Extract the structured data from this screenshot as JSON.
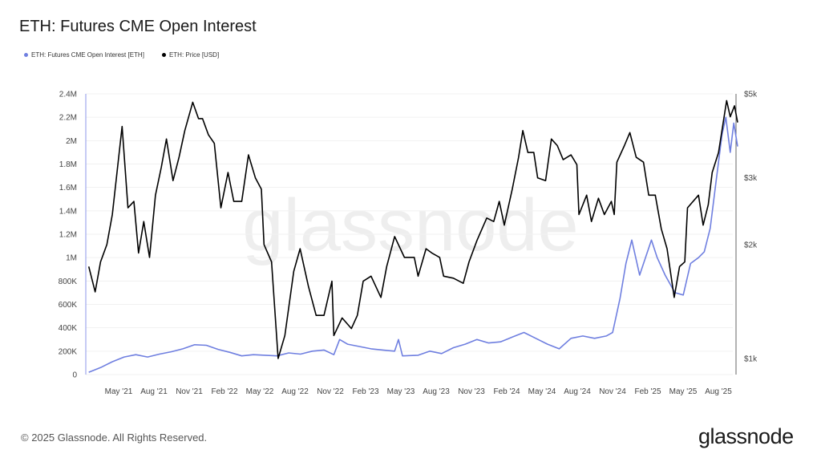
{
  "header": {
    "title": "ETH: Futures CME Open Interest"
  },
  "footer": {
    "copyright": "© 2025 Glassnode. All Rights Reserved.",
    "logo": "glassnode"
  },
  "watermark": "glassnode",
  "chart_data": {
    "type": "line",
    "title": "ETH: Futures CME Open Interest",
    "legend_position": "top-left",
    "grid": true,
    "x_ticks": [
      "May '21",
      "Aug '21",
      "Nov '21",
      "Feb '22",
      "May '22",
      "Aug '22",
      "Nov '22",
      "Feb '23",
      "May '23",
      "Aug '23",
      "Nov '23",
      "Feb '24",
      "May '24",
      "Aug '24",
      "Nov '24",
      "Feb '25",
      "May '25",
      "Aug '25"
    ],
    "y_left": {
      "ticks": [
        "0",
        "200K",
        "400K",
        "600K",
        "800K",
        "1M",
        "1.2M",
        "1.4M",
        "1.6M",
        "1.8M",
        "2M",
        "2.2M",
        "2.4M"
      ],
      "range": [
        0,
        2400000
      ],
      "scale": "linear"
    },
    "y_right": {
      "ticks": [
        "$1k",
        "$2k",
        "$3k",
        "$5k"
      ],
      "tick_values": [
        1000,
        2000,
        3000,
        5000
      ],
      "range": [
        1000,
        5000
      ],
      "scale": "log"
    },
    "series": [
      {
        "name": "ETH: Futures CME Open Interest [ETH]",
        "axis": "left",
        "color": "#6f7fe0",
        "points": [
          [
            "2021-02-15",
            20000
          ],
          [
            "2021-03-15",
            60000
          ],
          [
            "2021-04-15",
            110000
          ],
          [
            "2021-05-15",
            150000
          ],
          [
            "2021-06-15",
            170000
          ],
          [
            "2021-07-15",
            150000
          ],
          [
            "2021-08-15",
            175000
          ],
          [
            "2021-09-15",
            195000
          ],
          [
            "2021-10-15",
            220000
          ],
          [
            "2021-11-15",
            255000
          ],
          [
            "2021-12-15",
            250000
          ],
          [
            "2022-01-15",
            215000
          ],
          [
            "2022-02-15",
            190000
          ],
          [
            "2022-03-15",
            160000
          ],
          [
            "2022-04-15",
            170000
          ],
          [
            "2022-05-15",
            165000
          ],
          [
            "2022-06-15",
            160000
          ],
          [
            "2022-07-15",
            185000
          ],
          [
            "2022-08-15",
            175000
          ],
          [
            "2022-09-15",
            200000
          ],
          [
            "2022-10-15",
            210000
          ],
          [
            "2022-11-10",
            170000
          ],
          [
            "2022-11-25",
            300000
          ],
          [
            "2022-12-15",
            260000
          ],
          [
            "2023-01-15",
            240000
          ],
          [
            "2023-02-15",
            220000
          ],
          [
            "2023-03-15",
            210000
          ],
          [
            "2023-04-15",
            200000
          ],
          [
            "2023-04-25",
            300000
          ],
          [
            "2023-05-05",
            160000
          ],
          [
            "2023-06-15",
            165000
          ],
          [
            "2023-07-15",
            200000
          ],
          [
            "2023-08-15",
            180000
          ],
          [
            "2023-09-15",
            230000
          ],
          [
            "2023-10-15",
            260000
          ],
          [
            "2023-11-15",
            300000
          ],
          [
            "2023-12-15",
            270000
          ],
          [
            "2024-01-15",
            280000
          ],
          [
            "2024-02-15",
            320000
          ],
          [
            "2024-03-15",
            360000
          ],
          [
            "2024-04-15",
            310000
          ],
          [
            "2024-05-15",
            260000
          ],
          [
            "2024-06-15",
            220000
          ],
          [
            "2024-07-15",
            310000
          ],
          [
            "2024-08-15",
            330000
          ],
          [
            "2024-09-15",
            310000
          ],
          [
            "2024-10-15",
            330000
          ],
          [
            "2024-11-01",
            360000
          ],
          [
            "2024-11-20",
            650000
          ],
          [
            "2024-12-05",
            950000
          ],
          [
            "2024-12-20",
            1150000
          ],
          [
            "2025-01-10",
            850000
          ],
          [
            "2025-01-25",
            1000000
          ],
          [
            "2025-02-10",
            1150000
          ],
          [
            "2025-02-25",
            1000000
          ],
          [
            "2025-03-15",
            850000
          ],
          [
            "2025-04-10",
            700000
          ],
          [
            "2025-05-01",
            680000
          ],
          [
            "2025-05-20",
            950000
          ],
          [
            "2025-06-10",
            1000000
          ],
          [
            "2025-06-25",
            1050000
          ],
          [
            "2025-07-10",
            1250000
          ],
          [
            "2025-07-25",
            1650000
          ],
          [
            "2025-08-10",
            2050000
          ],
          [
            "2025-08-20",
            2200000
          ],
          [
            "2025-09-01",
            1900000
          ],
          [
            "2025-09-10",
            2150000
          ],
          [
            "2025-09-20",
            1950000
          ]
        ]
      },
      {
        "name": "ETH: Price [USD]",
        "axis": "right",
        "color": "#000000",
        "points": [
          [
            "2021-02-15",
            1750
          ],
          [
            "2021-03-01",
            1500
          ],
          [
            "2021-03-15",
            1800
          ],
          [
            "2021-04-01",
            2000
          ],
          [
            "2021-04-15",
            2400
          ],
          [
            "2021-05-10",
            4100
          ],
          [
            "2021-05-25",
            2500
          ],
          [
            "2021-06-10",
            2600
          ],
          [
            "2021-06-22",
            1900
          ],
          [
            "2021-07-05",
            2300
          ],
          [
            "2021-07-20",
            1850
          ],
          [
            "2021-08-05",
            2700
          ],
          [
            "2021-08-20",
            3200
          ],
          [
            "2021-09-03",
            3800
          ],
          [
            "2021-09-20",
            2950
          ],
          [
            "2021-10-05",
            3400
          ],
          [
            "2021-10-20",
            4000
          ],
          [
            "2021-11-10",
            4750
          ],
          [
            "2021-11-25",
            4300
          ],
          [
            "2021-12-05",
            4300
          ],
          [
            "2021-12-20",
            3900
          ],
          [
            "2022-01-05",
            3700
          ],
          [
            "2022-01-22",
            2500
          ],
          [
            "2022-02-10",
            3100
          ],
          [
            "2022-02-25",
            2600
          ],
          [
            "2022-03-15",
            2600
          ],
          [
            "2022-04-02",
            3450
          ],
          [
            "2022-04-20",
            3000
          ],
          [
            "2022-05-05",
            2800
          ],
          [
            "2022-05-12",
            2000
          ],
          [
            "2022-06-01",
            1800
          ],
          [
            "2022-06-18",
            1000
          ],
          [
            "2022-07-05",
            1150
          ],
          [
            "2022-07-28",
            1700
          ],
          [
            "2022-08-14",
            1950
          ],
          [
            "2022-09-05",
            1550
          ],
          [
            "2022-09-25",
            1300
          ],
          [
            "2022-10-15",
            1300
          ],
          [
            "2022-11-05",
            1600
          ],
          [
            "2022-11-10",
            1150
          ],
          [
            "2022-12-01",
            1280
          ],
          [
            "2022-12-25",
            1200
          ],
          [
            "2023-01-10",
            1300
          ],
          [
            "2023-01-25",
            1600
          ],
          [
            "2023-02-15",
            1650
          ],
          [
            "2023-03-10",
            1450
          ],
          [
            "2023-03-25",
            1750
          ],
          [
            "2023-04-15",
            2100
          ],
          [
            "2023-05-10",
            1850
          ],
          [
            "2023-06-05",
            1850
          ],
          [
            "2023-06-15",
            1650
          ],
          [
            "2023-07-05",
            1950
          ],
          [
            "2023-07-20",
            1900
          ],
          [
            "2023-08-10",
            1850
          ],
          [
            "2023-08-20",
            1650
          ],
          [
            "2023-09-15",
            1630
          ],
          [
            "2023-10-10",
            1580
          ],
          [
            "2023-10-25",
            1800
          ],
          [
            "2023-11-15",
            2050
          ],
          [
            "2023-12-10",
            2350
          ],
          [
            "2023-12-28",
            2300
          ],
          [
            "2024-01-12",
            2600
          ],
          [
            "2024-01-25",
            2250
          ],
          [
            "2024-02-15",
            2800
          ],
          [
            "2024-03-01",
            3400
          ],
          [
            "2024-03-12",
            4000
          ],
          [
            "2024-03-25",
            3500
          ],
          [
            "2024-04-10",
            3500
          ],
          [
            "2024-04-20",
            3000
          ],
          [
            "2024-05-10",
            2950
          ],
          [
            "2024-05-25",
            3800
          ],
          [
            "2024-06-10",
            3650
          ],
          [
            "2024-06-25",
            3350
          ],
          [
            "2024-07-15",
            3450
          ],
          [
            "2024-07-30",
            3250
          ],
          [
            "2024-08-05",
            2400
          ],
          [
            "2024-08-25",
            2700
          ],
          [
            "2024-09-07",
            2300
          ],
          [
            "2024-09-25",
            2650
          ],
          [
            "2024-10-10",
            2400
          ],
          [
            "2024-10-28",
            2600
          ],
          [
            "2024-11-05",
            2400
          ],
          [
            "2024-11-12",
            3300
          ],
          [
            "2024-12-01",
            3650
          ],
          [
            "2024-12-15",
            3950
          ],
          [
            "2025-01-01",
            3400
          ],
          [
            "2025-01-20",
            3300
          ],
          [
            "2025-02-03",
            2700
          ],
          [
            "2025-02-20",
            2700
          ],
          [
            "2025-03-05",
            2200
          ],
          [
            "2025-03-20",
            1950
          ],
          [
            "2025-04-08",
            1450
          ],
          [
            "2025-04-22",
            1750
          ],
          [
            "2025-05-05",
            1800
          ],
          [
            "2025-05-12",
            2500
          ],
          [
            "2025-06-10",
            2700
          ],
          [
            "2025-06-22",
            2250
          ],
          [
            "2025-07-05",
            2550
          ],
          [
            "2025-07-15",
            3100
          ],
          [
            "2025-08-01",
            3500
          ],
          [
            "2025-08-22",
            4800
          ],
          [
            "2025-09-01",
            4350
          ],
          [
            "2025-09-12",
            4650
          ],
          [
            "2025-09-20",
            4200
          ]
        ]
      }
    ]
  }
}
